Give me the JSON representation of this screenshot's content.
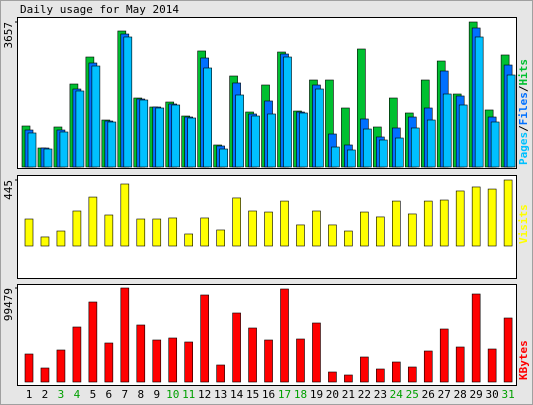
{
  "chart_data": [
    {
      "type": "bar",
      "title": "Daily usage for May 2014",
      "ylim": [
        0,
        3657
      ],
      "yticks": [
        3657
      ],
      "legend_separator": "/",
      "series": [
        {
          "name": "Hits",
          "color": "#00c030",
          "values": [
            1034,
            479,
            1009,
            2093,
            2774,
            1185,
            3430,
            1740,
            1513,
            1639,
            1286,
            2926,
            555,
            2295,
            1387,
            2068,
            2900,
            1412,
            2194,
            2194,
            1488,
            2976,
            1009,
            1740,
            1362,
            2194,
            2673,
            1841,
            3657,
            1438,
            2825
          ]
        },
        {
          "name": "Files",
          "color": "#0070ff",
          "values": [
            933,
            479,
            933,
            1967,
            2623,
            1160,
            3354,
            1715,
            1513,
            1589,
            1261,
            2749,
            530,
            2119,
            1337,
            1665,
            2850,
            1387,
            2068,
            832,
            555,
            1211,
            757,
            984,
            1261,
            1488,
            2421,
            1791,
            3506,
            1261,
            2572
          ]
        },
        {
          "name": "Pages",
          "color": "#00c0ff",
          "values": [
            858,
            454,
            883,
            1917,
            2547,
            1135,
            3279,
            1690,
            1488,
            1564,
            1236,
            2497,
            454,
            1816,
            1286,
            1337,
            2774,
            1362,
            1967,
            504,
            429,
            958,
            681,
            731,
            984,
            1185,
            1841,
            1564,
            3279,
            1135,
            2320
          ]
        }
      ]
    },
    {
      "type": "bar",
      "ylim": [
        0,
        445
      ],
      "yticks": [
        445
      ],
      "series": [
        {
          "name": "Visits",
          "color": "#ffff00",
          "values": [
            182,
            61,
            101,
            236,
            330,
            209,
            418,
            182,
            182,
            189,
            81,
            189,
            108,
            324,
            236,
            229,
            303,
            142,
            236,
            142,
            101,
            229,
            196,
            303,
            216,
            303,
            310,
            371,
            398,
            384,
            445
          ]
        }
      ]
    },
    {
      "type": "bar",
      "ylim": [
        0,
        99479
      ],
      "yticks": [
        99479
      ],
      "categories": [
        "1",
        "2",
        "3",
        "4",
        "5",
        "6",
        "7",
        "8",
        "9",
        "10",
        "11",
        "12",
        "13",
        "14",
        "15",
        "16",
        "17",
        "18",
        "19",
        "20",
        "21",
        "22",
        "23",
        "24",
        "25",
        "26",
        "27",
        "28",
        "29",
        "30",
        "31"
      ],
      "category_colors": [
        "#000000",
        "#000000",
        "#00a000",
        "#00a000",
        "#000000",
        "#000000",
        "#000000",
        "#000000",
        "#000000",
        "#00a000",
        "#00a000",
        "#000000",
        "#000000",
        "#000000",
        "#000000",
        "#000000",
        "#00a000",
        "#00a000",
        "#000000",
        "#000000",
        "#000000",
        "#000000",
        "#000000",
        "#00a000",
        "#00a000",
        "#000000",
        "#000000",
        "#000000",
        "#000000",
        "#000000",
        "#00a000"
      ],
      "series": [
        {
          "name": "KBytes",
          "color": "#ff0000",
          "values": [
            29632,
            14816,
            33866,
            58205,
            84659,
            41274,
            99479,
            60322,
            44449,
            46566,
            42332,
            92070,
            17991,
            73021,
            57146,
            44449,
            98420,
            45507,
            62439,
            10583,
            7408,
            26458,
            13758,
            21166,
            15874,
            32807,
            56088,
            37041,
            93128,
            34924,
            67730
          ]
        }
      ]
    }
  ]
}
